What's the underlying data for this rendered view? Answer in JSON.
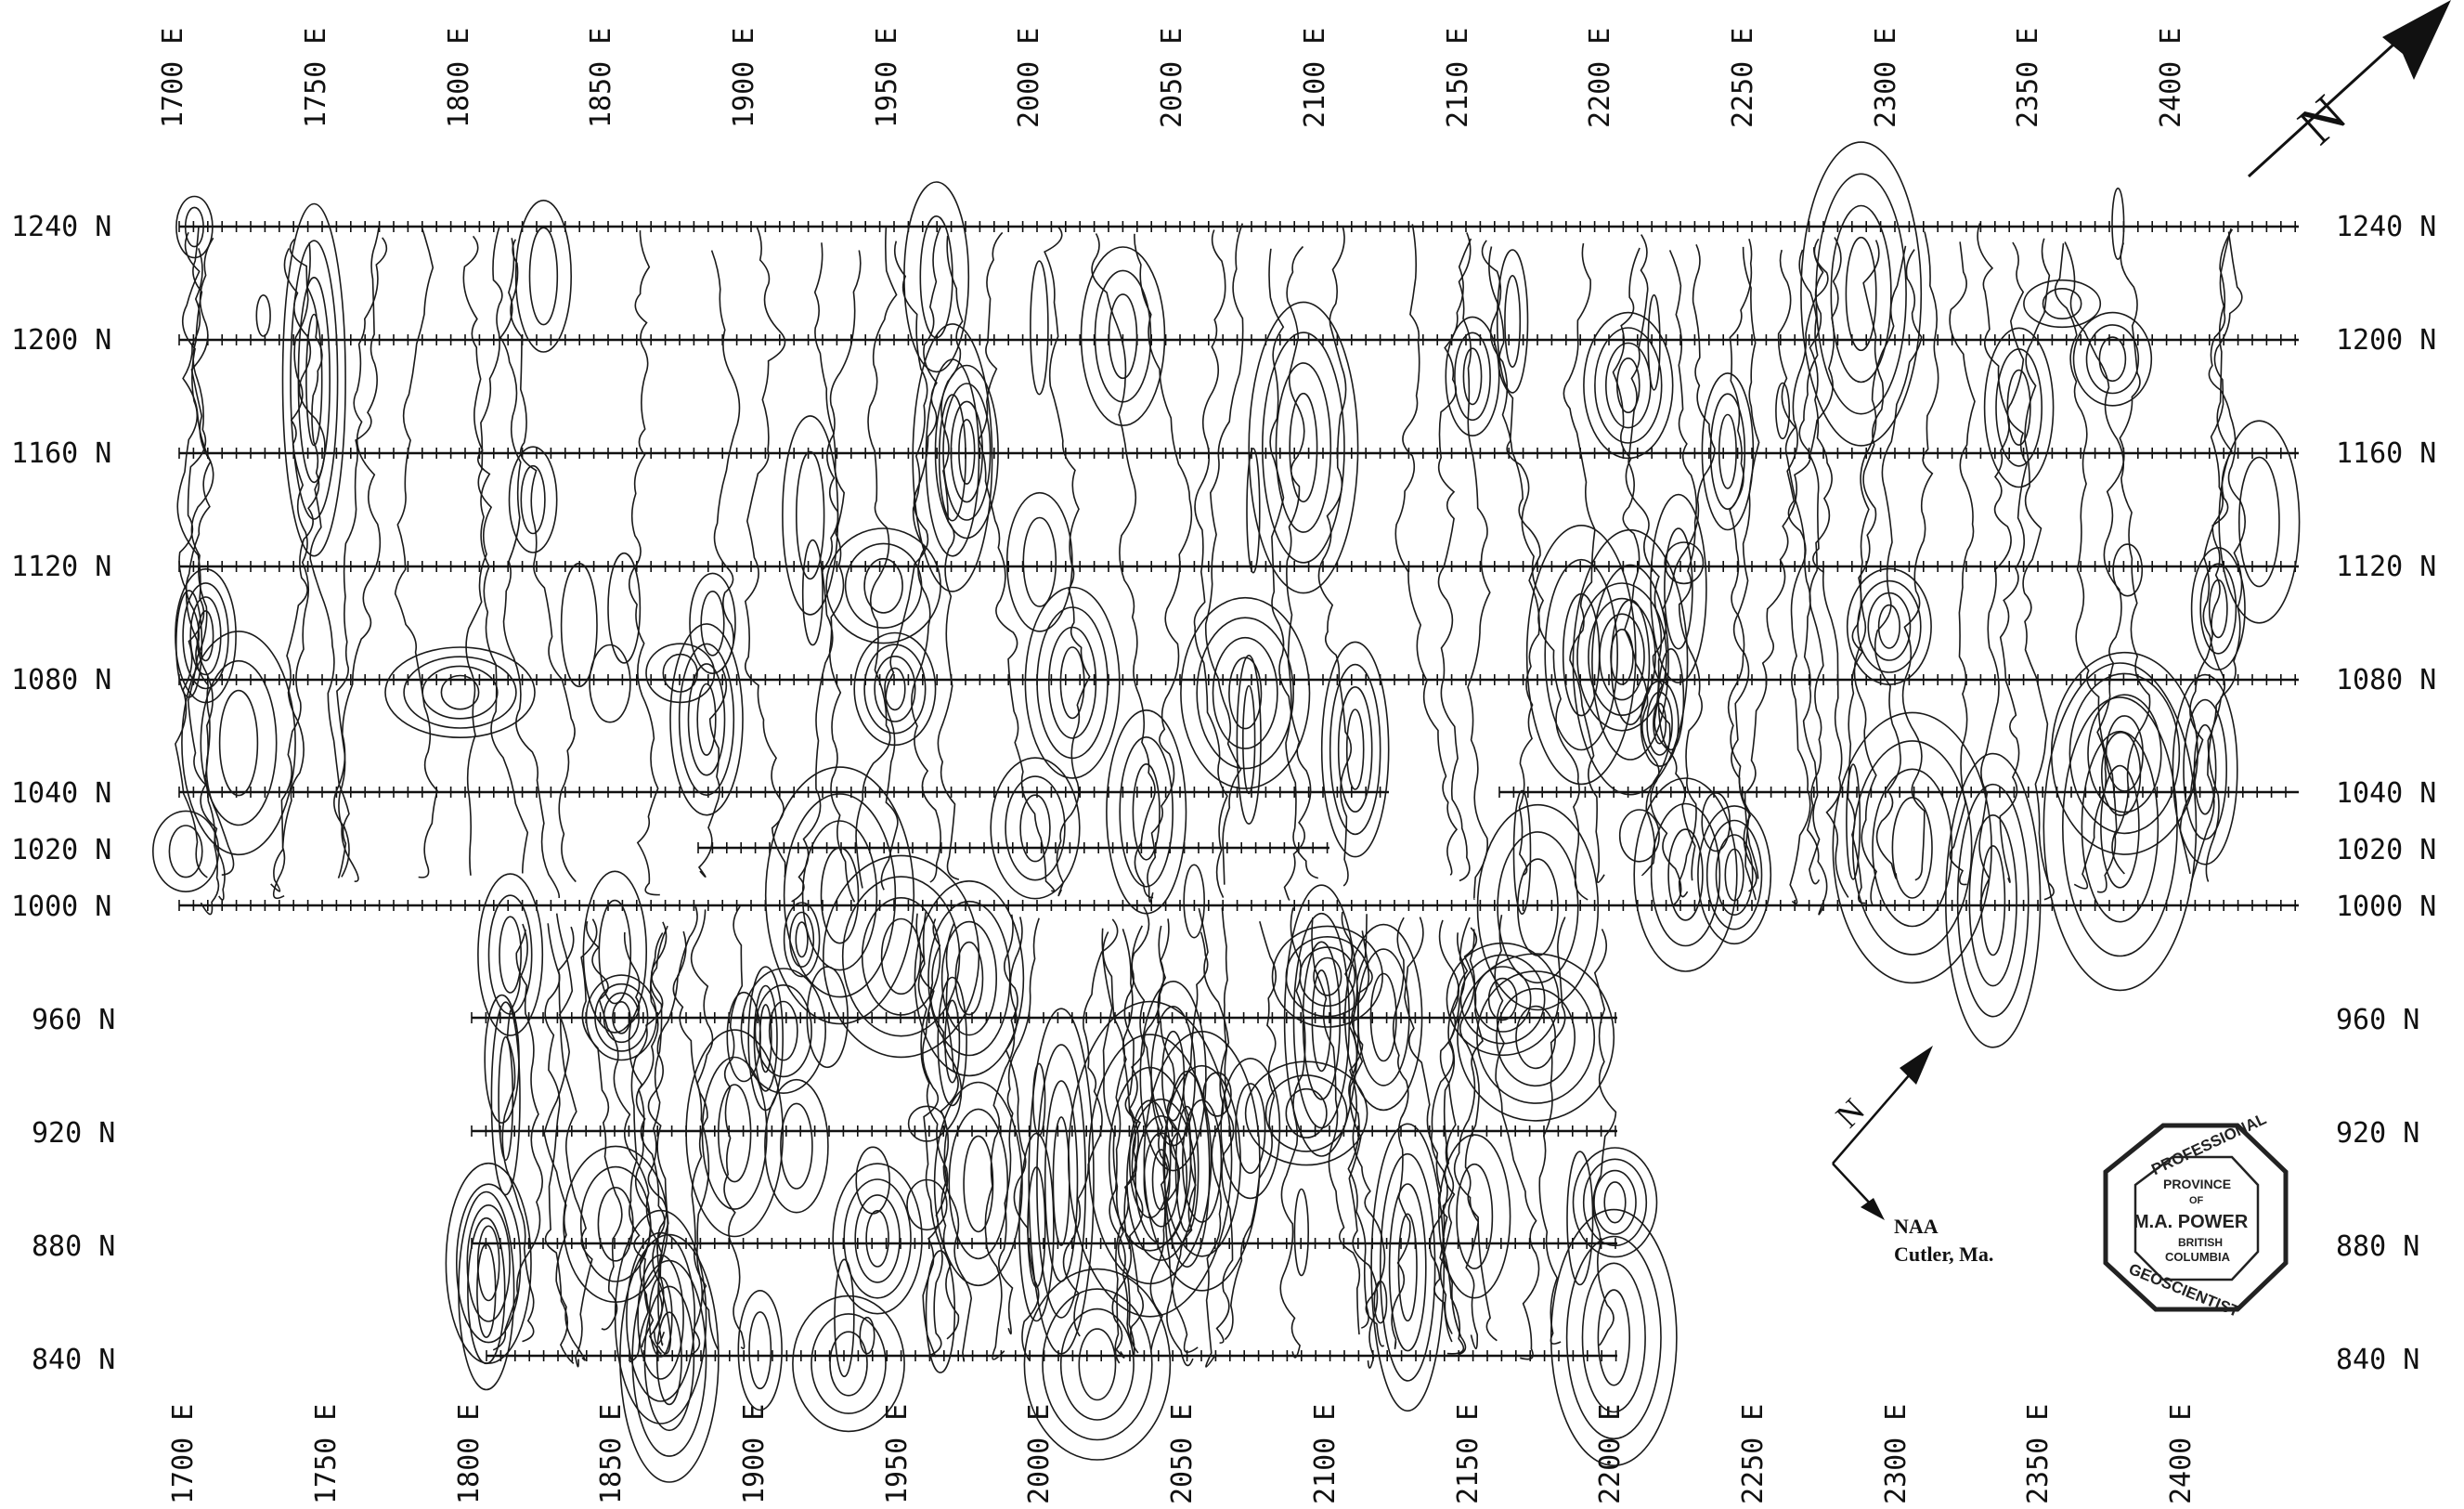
{
  "map": {
    "east_labels": [
      "1700 E",
      "1750 E",
      "1800 E",
      "1850 E",
      "1900 E",
      "1950 E",
      "2000 E",
      "2050 E",
      "2100 E",
      "2150 E",
      "2200 E",
      "2250 E",
      "2300 E",
      "2350 E",
      "2400 E"
    ],
    "north_labels_left": [
      "1240 N",
      "1200 N",
      "1160 N",
      "1120 N",
      "1080 N",
      "1040 N",
      "1020 N",
      "1000 N",
      "960 N",
      "920 N",
      "880 N",
      "840 N"
    ],
    "north_labels_right": [
      "1240 N",
      "1200 N",
      "1160 N",
      "1120 N",
      "1080 N",
      "1040 N",
      "1020 N",
      "1000 N",
      "960 N",
      "920 N",
      "880 N",
      "840 N"
    ],
    "north_arrow_label": "N",
    "compass_label": "N",
    "station_name": "NAA",
    "station_location": "Cutler, Ma.",
    "seal_lines": [
      "PROFESSIONAL",
      "PROVINCE",
      "OF",
      "M.A. POWER",
      "BRITISH",
      "COLUMBIA",
      "GEOSCIENTIST"
    ]
  }
}
